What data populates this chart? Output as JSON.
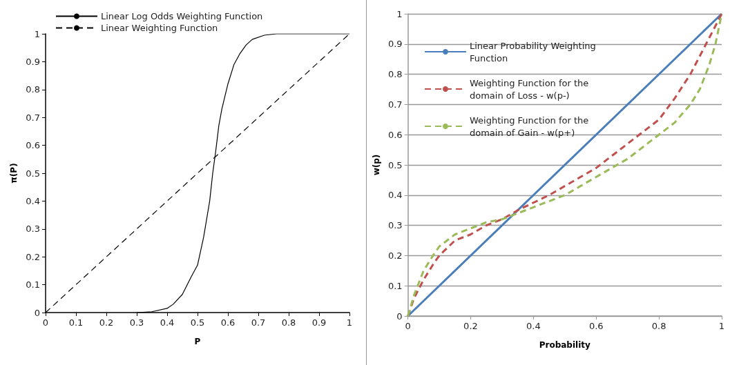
{
  "chart_data": [
    {
      "type": "line",
      "xlabel": "P",
      "ylabel": "π(P)",
      "xlim": [
        0,
        1
      ],
      "ylim": [
        0,
        1
      ],
      "xticks": [
        0,
        0.1,
        0.2,
        0.3,
        0.4,
        0.5,
        0.6,
        0.7,
        0.8,
        0.9,
        1
      ],
      "yticks": [
        0,
        0.1,
        0.2,
        0.3,
        0.4,
        0.5,
        0.6,
        0.7,
        0.8,
        0.9,
        1
      ],
      "grid": false,
      "legend": "top left",
      "marker": "none",
      "series": [
        {
          "name": "Linear Log Odds Weighting Function",
          "color": "#000000",
          "line_style": "solid",
          "x": [
            0.3,
            0.35,
            0.4,
            0.42,
            0.45,
            0.48,
            0.5,
            0.52,
            0.54,
            0.55,
            0.56,
            0.57,
            0.58,
            0.6,
            0.62,
            0.64,
            0.66,
            0.68,
            0.72,
            0.76,
            0.8,
            0.9,
            1
          ],
          "values": [
            0,
            0.003,
            0.015,
            0.03,
            0.065,
            0.13,
            0.17,
            0.27,
            0.4,
            0.5,
            0.58,
            0.67,
            0.73,
            0.82,
            0.89,
            0.93,
            0.96,
            0.98,
            0.995,
            1,
            1,
            1,
            1
          ]
        },
        {
          "name": "Linear Weighting Function",
          "color": "#000000",
          "line_style": "dashed",
          "x": [
            0,
            1
          ],
          "values": [
            0,
            1
          ]
        }
      ]
    },
    {
      "type": "line",
      "xlabel": "Probability",
      "ylabel": "w(p)",
      "xlim": [
        0,
        1
      ],
      "ylim": [
        0,
        1
      ],
      "xticks": [
        0,
        0.2,
        0.4,
        0.6,
        0.8,
        1
      ],
      "yticks": [
        0,
        0.1,
        0.2,
        0.3,
        0.4,
        0.5,
        0.6,
        0.7,
        0.8,
        0.9,
        1
      ],
      "grid": "y",
      "legend": "top left",
      "marker": "none",
      "series": [
        {
          "name": "Linear Probability Weighting Function",
          "color": "#4a7ebb",
          "line_style": "solid",
          "x": [
            0,
            1
          ],
          "values": [
            0,
            1
          ]
        },
        {
          "name": "Weighting Function for the domain of Loss - w(p-)",
          "color": "#c0504d",
          "line_style": "dashed",
          "x": [
            0,
            0.02,
            0.05,
            0.08,
            0.1,
            0.15,
            0.2,
            0.25,
            0.3,
            0.35,
            0.4,
            0.45,
            0.5,
            0.55,
            0.6,
            0.65,
            0.7,
            0.75,
            0.8,
            0.85,
            0.9,
            0.95,
            0.98,
            1
          ],
          "values": [
            0,
            0.06,
            0.12,
            0.17,
            0.2,
            0.25,
            0.27,
            0.3,
            0.32,
            0.35,
            0.375,
            0.4,
            0.43,
            0.46,
            0.49,
            0.53,
            0.57,
            0.61,
            0.65,
            0.72,
            0.8,
            0.9,
            0.96,
            1
          ]
        },
        {
          "name": "Weighting Function for the domain of Gain - w(p+)",
          "color": "#9bbb59",
          "line_style": "dashed",
          "x": [
            0,
            0.02,
            0.05,
            0.08,
            0.1,
            0.15,
            0.2,
            0.25,
            0.3,
            0.35,
            0.4,
            0.45,
            0.5,
            0.55,
            0.6,
            0.65,
            0.7,
            0.75,
            0.8,
            0.85,
            0.9,
            0.93,
            0.96,
            0.98,
            1
          ],
          "values": [
            0,
            0.07,
            0.15,
            0.2,
            0.23,
            0.27,
            0.29,
            0.31,
            0.32,
            0.34,
            0.36,
            0.38,
            0.4,
            0.43,
            0.46,
            0.49,
            0.52,
            0.56,
            0.6,
            0.64,
            0.7,
            0.75,
            0.83,
            0.9,
            1
          ]
        }
      ]
    }
  ]
}
